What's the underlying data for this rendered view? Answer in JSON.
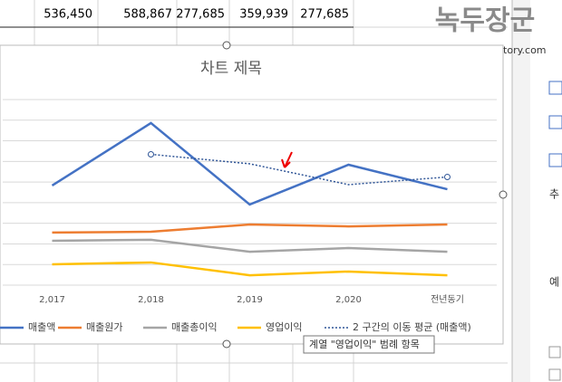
{
  "spreadsheet": {
    "row": [
      "536,450",
      "588,867",
      "277,685",
      "359,939",
      "277,685"
    ]
  },
  "watermark": {
    "title": "녹두장군",
    "url": "http://mainia.tistory.com"
  },
  "side_panel": {
    "labels": [
      "추",
      "예"
    ]
  },
  "chart_data": {
    "type": "line",
    "title": "차트 제목",
    "categories": [
      "2,017",
      "2,018",
      "2,019",
      "2,020",
      "전년동기"
    ],
    "ylim": [
      0,
      900
    ],
    "grid": true,
    "series": [
      {
        "name": "매출액",
        "color": "#4472c4",
        "values": [
          483,
          786,
          391,
          584,
          465
        ]
      },
      {
        "name": "매출원가",
        "color": "#ed7d31",
        "values": [
          255,
          259,
          294,
          285,
          294
        ]
      },
      {
        "name": "매출총이익",
        "color": "#a5a5a5",
        "values": [
          215,
          220,
          162,
          180,
          162
        ]
      },
      {
        "name": "영업이익",
        "color": "#ffc000",
        "values": [
          101,
          110,
          48,
          66,
          48
        ]
      },
      {
        "name": "2 구간의 이동 평균 (매출액)",
        "color": "#2f5597",
        "style": "dotted",
        "values": [
          null,
          634.5,
          588.5,
          487.5,
          524.5
        ]
      }
    ],
    "tooltip": "계열 \"영업이익\" 범례 항목"
  }
}
